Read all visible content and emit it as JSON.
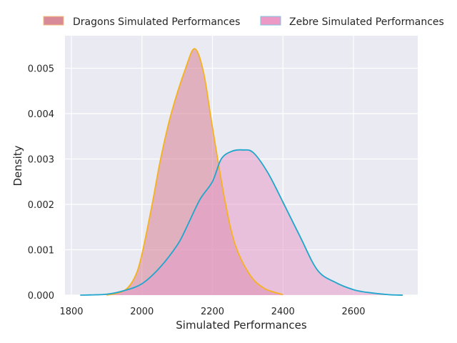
{
  "chart_data": {
    "type": "area",
    "title": "",
    "xlabel": "Simulated Performances",
    "ylabel": "Density",
    "xlim": [
      1780,
      2780
    ],
    "ylim": [
      0,
      0.00572
    ],
    "xticks": [
      1800,
      2000,
      2200,
      2400,
      2600
    ],
    "xtick_labels": [
      "1800",
      "2000",
      "2200",
      "2400",
      "2600"
    ],
    "yticks": [
      0,
      0.001,
      0.002,
      0.003,
      0.004,
      0.005
    ],
    "ytick_labels": [
      "0.000",
      "0.001",
      "0.002",
      "0.003",
      "0.004",
      "0.005"
    ],
    "grid": true,
    "legend_position": "top-outside",
    "series": [
      {
        "name": "Dragons Simulated Performances",
        "fill": "#d77f93",
        "edge": "#f5b21c",
        "x": [
          1900,
          1950,
          1980,
          2000,
          2029,
          2053,
          2083,
          2124,
          2150,
          2175,
          2200,
          2235,
          2265,
          2306,
          2347,
          2400
        ],
        "y": [
          0,
          0.0001,
          0.0004,
          0.0009,
          0.002,
          0.003,
          0.004,
          0.005,
          0.00543,
          0.0049,
          0.0037,
          0.0021,
          0.0011,
          0.00045,
          0.00015,
          1e-05
        ]
      },
      {
        "name": "Zebre Simulated Performances",
        "fill": "#e59cc9",
        "edge": "#1fa6cc",
        "x": [
          1825,
          1900,
          1950,
          2000,
          2050,
          2100,
          2124,
          2164,
          2200,
          2225,
          2255,
          2286,
          2316,
          2357,
          2400,
          2448,
          2498,
          2549,
          2600,
          2640,
          2700,
          2740
        ],
        "y": [
          0,
          2e-05,
          0.0001,
          0.00025,
          0.0006,
          0.0011,
          0.00145,
          0.0021,
          0.0025,
          0.003,
          0.00317,
          0.0032,
          0.00314,
          0.0027,
          0.00205,
          0.0013,
          0.00055,
          0.00028,
          0.00012,
          6e-05,
          1e-05,
          0
        ]
      }
    ]
  }
}
